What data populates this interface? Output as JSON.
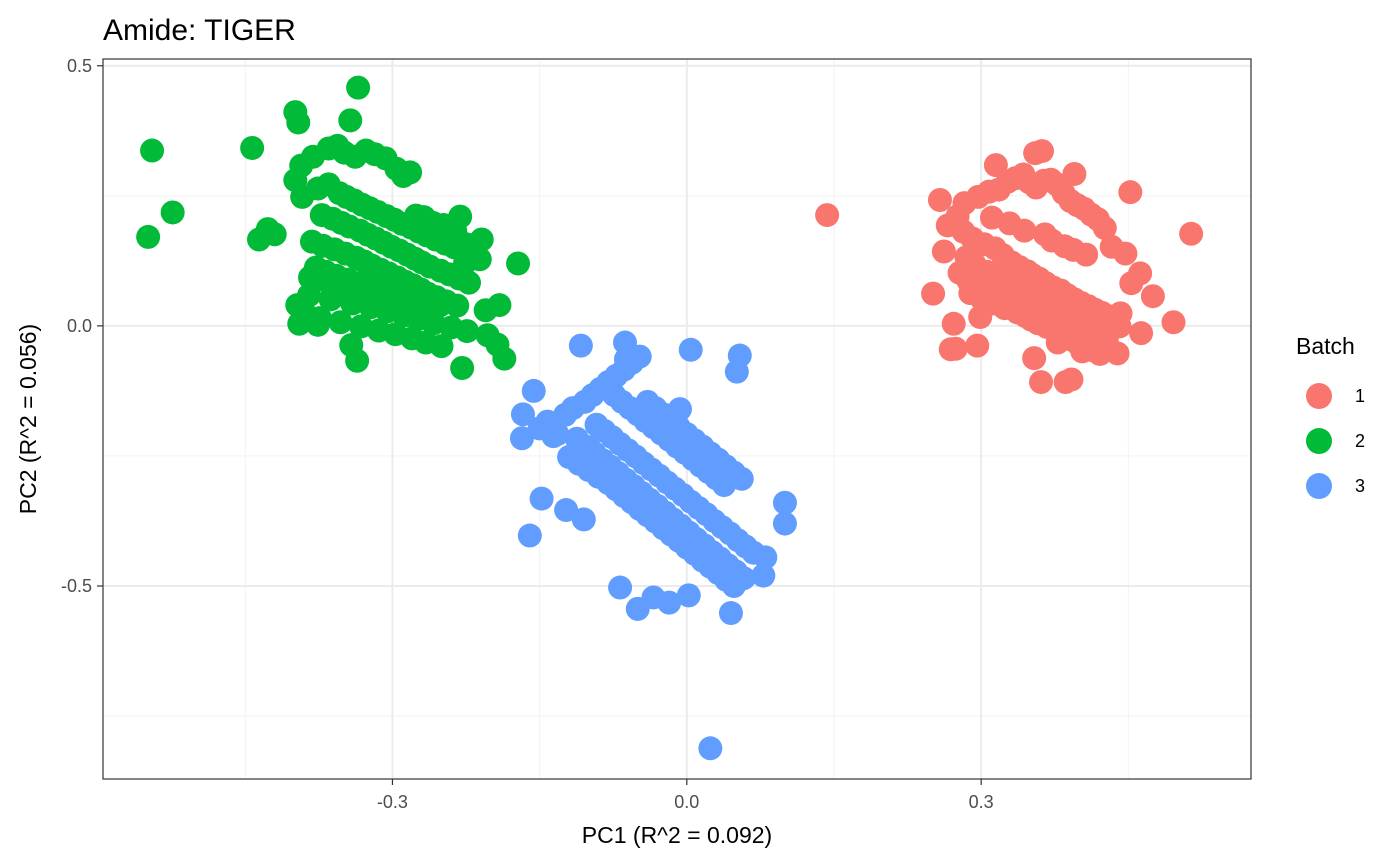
{
  "chart_data": {
    "type": "scatter",
    "title": "Amide: TIGER",
    "xlabel": "PC1 (R^2 = 0.092)",
    "ylabel": "PC2 (R^2 = 0.056)",
    "xlim": [
      -0.595,
      0.575
    ],
    "ylim": [
      -0.871,
      0.513
    ],
    "x_ticks": [
      -0.3,
      0.0,
      0.3
    ],
    "x_tick_labels": [
      "-0.3",
      "0.0",
      "0.3"
    ],
    "y_ticks": [
      -0.5,
      0.0,
      0.5
    ],
    "y_tick_labels": [
      "-0.5",
      "0.0",
      "0.5"
    ],
    "grid": true,
    "legend": {
      "title": "Batch",
      "position": "right",
      "entries": [
        {
          "label": "1",
          "color": "#F8766D"
        },
        {
          "label": "2",
          "color": "#00BA38"
        },
        {
          "label": "3",
          "color": "#619CFF"
        }
      ]
    },
    "series": [
      {
        "name": "1",
        "color": "#F8766D",
        "x": [
          0.143,
          0.514,
          0.258,
          0.315,
          0.355,
          0.362,
          0.395,
          0.452,
          0.386,
          0.392,
          0.296,
          0.274,
          0.269,
          0.439,
          0.428,
          0.413,
          0.442,
          0.453,
          0.251,
          0.262,
          0.266,
          0.276,
          0.283,
          0.297,
          0.308,
          0.318,
          0.327,
          0.335,
          0.343,
          0.349,
          0.356,
          0.364,
          0.371,
          0.377,
          0.384,
          0.391,
          0.398,
          0.405,
          0.412,
          0.419,
          0.426,
          0.433,
          0.447,
          0.462,
          0.475,
          0.496,
          0.272,
          0.299,
          0.354,
          0.361,
          0.378,
          0.403,
          0.441,
          0.463,
          0.282,
          0.291,
          0.303,
          0.314,
          0.322,
          0.331,
          0.339,
          0.347,
          0.352,
          0.359,
          0.366,
          0.373,
          0.381,
          0.388,
          0.395,
          0.402,
          0.409,
          0.416,
          0.423,
          0.432,
          0.437,
          0.285,
          0.293,
          0.306,
          0.319,
          0.326,
          0.333,
          0.341,
          0.348,
          0.357,
          0.363,
          0.369,
          0.376,
          0.383,
          0.389,
          0.396,
          0.404,
          0.411,
          0.418,
          0.427,
          0.289,
          0.301,
          0.312,
          0.324,
          0.337,
          0.345,
          0.351,
          0.358,
          0.367,
          0.374,
          0.382,
          0.387,
          0.393,
          0.399,
          0.406,
          0.414,
          0.421,
          0.311,
          0.329,
          0.344,
          0.365,
          0.372,
          0.385,
          0.394,
          0.407,
          0.278,
          0.287,
          0.304,
          0.317,
          0.336,
          0.353,
          0.368,
          0.379,
          0.401
        ],
        "y": [
          0.213,
          0.177,
          0.242,
          0.309,
          0.332,
          0.336,
          0.292,
          0.257,
          -0.108,
          -0.103,
          -0.038,
          -0.044,
          -0.045,
          -0.053,
          -0.028,
          0.004,
          0.024,
          0.082,
          0.062,
          0.143,
          0.193,
          0.211,
          0.236,
          0.248,
          0.258,
          0.262,
          0.277,
          0.284,
          0.291,
          0.276,
          0.266,
          0.279,
          0.281,
          0.272,
          0.255,
          0.24,
          0.232,
          0.225,
          0.214,
          0.205,
          0.188,
          0.152,
          0.139,
          0.101,
          0.057,
          0.007,
          0.004,
          0.017,
          -0.062,
          -0.108,
          -0.032,
          -0.049,
          -0.001,
          -0.014,
          0.181,
          0.168,
          0.157,
          0.149,
          0.136,
          0.122,
          0.113,
          0.105,
          0.098,
          0.091,
          0.082,
          0.074,
          0.068,
          0.059,
          0.051,
          0.044,
          0.038,
          0.031,
          0.025,
          0.018,
          0.011,
          0.132,
          0.119,
          0.104,
          0.095,
          0.088,
          0.079,
          0.071,
          0.064,
          0.055,
          0.047,
          0.041,
          0.034,
          0.028,
          0.021,
          0.014,
          0.008,
          0.002,
          -0.004,
          -0.011,
          0.063,
          0.051,
          0.043,
          0.034,
          0.026,
          0.019,
          0.012,
          0.005,
          -0.002,
          -0.008,
          -0.015,
          -0.021,
          -0.027,
          -0.035,
          -0.041,
          -0.047,
          -0.054,
          0.208,
          0.197,
          0.183,
          0.176,
          0.164,
          0.153,
          0.146,
          0.137,
          0.102,
          0.087,
          0.072,
          0.066,
          0.053,
          0.039,
          0.022,
          0.012,
          -0.019
        ],
        "size": "large"
      },
      {
        "name": "2",
        "color": "#00BA38",
        "x": [
          -0.545,
          -0.524,
          -0.549,
          -0.443,
          -0.335,
          -0.399,
          -0.396,
          -0.343,
          -0.399,
          -0.392,
          -0.172,
          -0.231,
          -0.225,
          -0.209,
          -0.191,
          -0.193,
          -0.186,
          -0.229,
          -0.336,
          -0.342,
          -0.376,
          -0.395,
          -0.397,
          -0.42,
          -0.427,
          -0.436,
          -0.393,
          -0.381,
          -0.365,
          -0.356,
          -0.349,
          -0.338,
          -0.327,
          -0.318,
          -0.307,
          -0.296,
          -0.289,
          -0.282,
          -0.276,
          -0.268,
          -0.259,
          -0.248,
          -0.236,
          -0.226,
          -0.205,
          -0.376,
          -0.365,
          -0.354,
          -0.347,
          -0.339,
          -0.331,
          -0.323,
          -0.315,
          -0.306,
          -0.298,
          -0.29,
          -0.281,
          -0.273,
          -0.265,
          -0.256,
          -0.246,
          -0.237,
          -0.228,
          -0.219,
          -0.211,
          -0.372,
          -0.361,
          -0.352,
          -0.344,
          -0.333,
          -0.325,
          -0.317,
          -0.309,
          -0.301,
          -0.293,
          -0.285,
          -0.277,
          -0.27,
          -0.262,
          -0.251,
          -0.242,
          -0.232,
          -0.222,
          -0.382,
          -0.371,
          -0.359,
          -0.348,
          -0.337,
          -0.329,
          -0.321,
          -0.312,
          -0.304,
          -0.295,
          -0.287,
          -0.279,
          -0.271,
          -0.264,
          -0.255,
          -0.245,
          -0.234,
          -0.378,
          -0.368,
          -0.357,
          -0.345,
          -0.334,
          -0.326,
          -0.319,
          -0.311,
          -0.302,
          -0.294,
          -0.286,
          -0.278,
          -0.269,
          -0.261,
          -0.385,
          -0.363,
          -0.341,
          -0.322,
          -0.305,
          -0.288,
          -0.274,
          -0.258,
          -0.24,
          -0.224,
          -0.203,
          -0.389,
          -0.374,
          -0.353,
          -0.332,
          -0.314,
          -0.297,
          -0.28,
          -0.266,
          -0.25,
          -0.384,
          -0.366,
          -0.346,
          -0.328,
          -0.308,
          -0.291,
          -0.272,
          -0.252
        ],
        "y": [
          0.337,
          0.218,
          0.171,
          0.342,
          0.458,
          0.411,
          0.391,
          0.395,
          0.28,
          0.248,
          0.12,
          0.21,
          0.157,
          0.166,
          0.04,
          -0.036,
          -0.063,
          -0.081,
          -0.067,
          -0.037,
          0.002,
          0.004,
          0.04,
          0.176,
          0.186,
          0.166,
          0.308,
          0.325,
          0.341,
          0.346,
          0.333,
          0.325,
          0.337,
          0.33,
          0.322,
          0.302,
          0.288,
          0.295,
          0.212,
          0.209,
          0.198,
          0.194,
          0.182,
          0.121,
          0.03,
          0.264,
          0.272,
          0.255,
          0.248,
          0.241,
          0.233,
          0.226,
          0.219,
          0.211,
          0.204,
          0.196,
          0.189,
          0.181,
          0.174,
          0.166,
          0.158,
          0.151,
          0.143,
          0.136,
          0.128,
          0.213,
          0.206,
          0.198,
          0.191,
          0.183,
          0.175,
          0.168,
          0.16,
          0.152,
          0.145,
          0.137,
          0.129,
          0.122,
          0.114,
          0.106,
          0.099,
          0.091,
          0.083,
          0.162,
          0.154,
          0.147,
          0.139,
          0.131,
          0.124,
          0.116,
          0.108,
          0.101,
          0.093,
          0.085,
          0.078,
          0.07,
          0.062,
          0.055,
          0.047,
          0.039,
          0.112,
          0.104,
          0.096,
          0.089,
          0.081,
          0.073,
          0.066,
          0.058,
          0.05,
          0.043,
          0.035,
          0.027,
          0.02,
          0.012,
          0.059,
          0.051,
          0.043,
          0.036,
          0.028,
          0.02,
          0.013,
          0.005,
          -0.003,
          -0.01,
          -0.018,
          0.023,
          0.015,
          0.007,
          -0.001,
          -0.009,
          -0.016,
          -0.024,
          -0.032,
          -0.039,
          0.093,
          0.085,
          0.077,
          0.07,
          0.062,
          0.054,
          0.047,
          0.039
        ],
        "size": "large"
      },
      {
        "name": "3",
        "color": "#619CFF",
        "x": [
          0.024,
          -0.068,
          -0.16,
          -0.063,
          0.1,
          0.1,
          0.08,
          0.078,
          0.051,
          0.054,
          0.004,
          -0.108,
          -0.062,
          -0.007,
          -0.156,
          -0.167,
          -0.168,
          -0.136,
          -0.132,
          -0.112,
          -0.108,
          -0.1,
          -0.094,
          -0.086,
          -0.078,
          -0.07,
          -0.062,
          -0.054,
          -0.046,
          -0.038,
          -0.03,
          -0.022,
          -0.014,
          -0.006,
          0.002,
          0.01,
          0.018,
          0.026,
          0.034,
          0.042,
          0.05,
          0.058,
          -0.15,
          -0.142,
          -0.124,
          -0.116,
          -0.104,
          -0.096,
          -0.088,
          -0.08,
          -0.072,
          -0.064,
          -0.056,
          -0.048,
          -0.04,
          -0.032,
          -0.024,
          -0.016,
          -0.008,
          0.0,
          0.008,
          0.016,
          0.024,
          0.032,
          0.04,
          0.048,
          0.056,
          -0.12,
          -0.11,
          -0.1,
          -0.09,
          -0.08,
          -0.072,
          -0.064,
          -0.056,
          -0.048,
          -0.04,
          -0.032,
          -0.024,
          -0.016,
          -0.008,
          0.0,
          0.008,
          0.016,
          0.024,
          0.032,
          0.04,
          0.048,
          -0.092,
          -0.084,
          -0.076,
          -0.068,
          -0.06,
          -0.052,
          -0.044,
          -0.036,
          -0.028,
          -0.02,
          -0.012,
          -0.004,
          0.004,
          0.012,
          0.02,
          0.028,
          0.036,
          0.044,
          0.052,
          0.06,
          0.068,
          -0.082,
          -0.074,
          -0.066,
          -0.058,
          -0.05,
          -0.042,
          -0.034,
          -0.026,
          -0.018,
          -0.01,
          -0.002,
          0.006,
          0.014,
          0.022,
          0.03,
          0.038,
          -0.05,
          -0.034,
          -0.018,
          0.002,
          -0.105,
          -0.123,
          -0.148,
          0.045
        ],
        "y": [
          -0.812,
          -0.503,
          -0.403,
          -0.032,
          -0.34,
          -0.38,
          -0.445,
          -0.48,
          -0.088,
          -0.057,
          -0.046,
          -0.038,
          -0.064,
          -0.16,
          -0.125,
          -0.17,
          -0.216,
          -0.212,
          -0.208,
          -0.217,
          -0.232,
          -0.233,
          -0.245,
          -0.258,
          -0.27,
          -0.283,
          -0.296,
          -0.308,
          -0.321,
          -0.334,
          -0.346,
          -0.359,
          -0.372,
          -0.384,
          -0.397,
          -0.41,
          -0.422,
          -0.435,
          -0.447,
          -0.46,
          -0.472,
          -0.485,
          -0.197,
          -0.184,
          -0.171,
          -0.158,
          -0.146,
          -0.133,
          -0.121,
          -0.108,
          -0.096,
          -0.084,
          -0.071,
          -0.059,
          -0.146,
          -0.158,
          -0.17,
          -0.183,
          -0.195,
          -0.208,
          -0.22,
          -0.232,
          -0.245,
          -0.257,
          -0.27,
          -0.282,
          -0.294,
          -0.252,
          -0.265,
          -0.277,
          -0.29,
          -0.302,
          -0.314,
          -0.327,
          -0.339,
          -0.352,
          -0.364,
          -0.376,
          -0.389,
          -0.401,
          -0.413,
          -0.426,
          -0.438,
          -0.451,
          -0.463,
          -0.475,
          -0.488,
          -0.5,
          -0.19,
          -0.202,
          -0.214,
          -0.227,
          -0.239,
          -0.251,
          -0.264,
          -0.276,
          -0.288,
          -0.301,
          -0.313,
          -0.325,
          -0.338,
          -0.35,
          -0.362,
          -0.375,
          -0.387,
          -0.399,
          -0.412,
          -0.424,
          -0.436,
          -0.121,
          -0.133,
          -0.146,
          -0.158,
          -0.17,
          -0.183,
          -0.195,
          -0.207,
          -0.219,
          -0.232,
          -0.244,
          -0.256,
          -0.269,
          -0.281,
          -0.293,
          -0.306,
          -0.544,
          -0.522,
          -0.532,
          -0.518,
          -0.372,
          -0.354,
          -0.332,
          -0.552
        ],
        "size": "large"
      }
    ]
  }
}
